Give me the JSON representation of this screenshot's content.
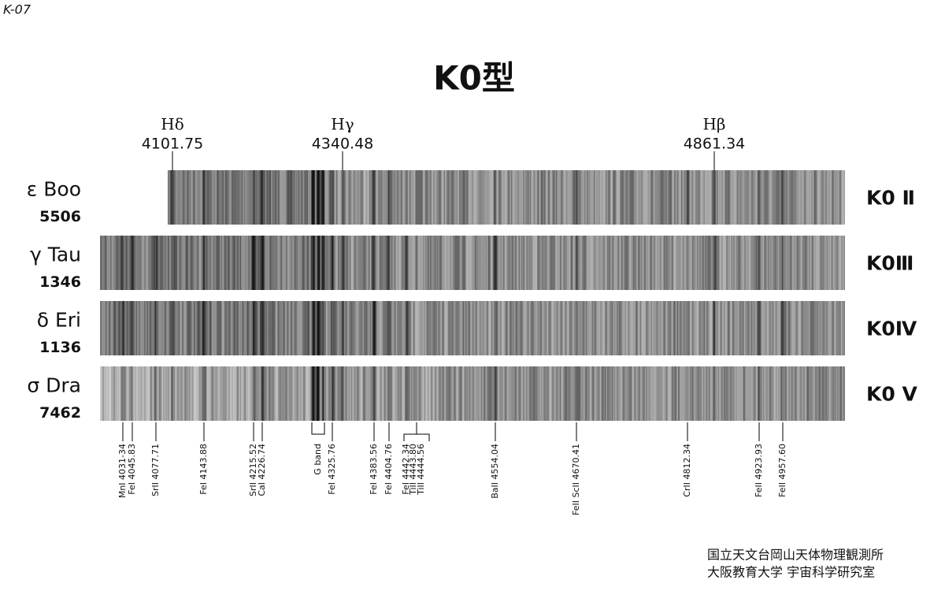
{
  "code": "K-07",
  "title": "K0型",
  "hydrogen_lines": [
    {
      "label": "Hδ",
      "wavelength": "4101.75"
    },
    {
      "label": "Hγ",
      "wavelength": "4340.48"
    },
    {
      "label": "Hβ",
      "wavelength": "4861.34"
    }
  ],
  "stars": [
    {
      "name": "ε Boo",
      "number": "5506",
      "class": "K0 Ⅱ"
    },
    {
      "name": "γ Tau",
      "number": "1346",
      "class": "K0Ⅲ"
    },
    {
      "name": "δ Eri",
      "number": "1136",
      "class": "K0Ⅳ"
    },
    {
      "name": "σ Dra",
      "number": "7462",
      "class": "K0 Ⅴ"
    }
  ],
  "lines": [
    "MnI 4031-34",
    "FeI 4045.83",
    "SrII 4077.71",
    "FeI 4143.88",
    "SrII 4215.52",
    "CaI 4226.74",
    "G band",
    "FeI 4325.76",
    "FeI 4383.56",
    "FeI 4404.76",
    "FeI 4442.34",
    "TiII 4443.80",
    "TiII 4444.56",
    "BaII 4554.04",
    "FeII ScII 4670.41",
    "CrII 4812.34",
    "FeII 4923.93",
    "FeII 4957.60"
  ],
  "credit": [
    "国立天文台岡山天体物理観測所",
    "大阪教育大学 宇宙科学研究室"
  ]
}
